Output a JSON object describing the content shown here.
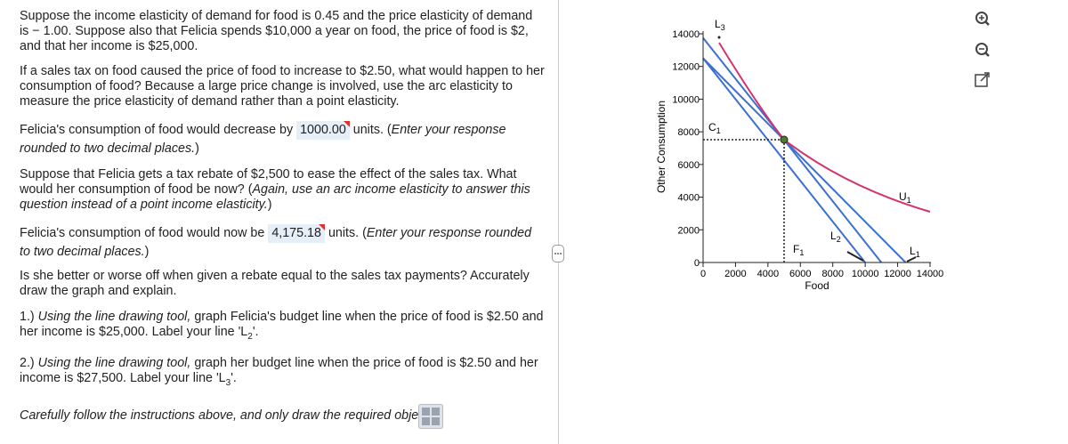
{
  "problem": {
    "q1": "Suppose the income elasticity of demand for food is 0.45 and the price elasticity of demand is − 1.00. Suppose also that Felicia spends $10,000 a year on food, the price of food is $2, and that her income is $25,000.",
    "q2": "If a sales tax on food caused the price of food to increase to $2.50, what would happen to her consumption of food? Because a large price change is involved, use the arc elasticity to measure the price elasticity of demand rather than a point elasticity.",
    "a1": {
      "before": "Felicia's consumption of food would decrease by",
      "input": "1000.00",
      "after": "units. (",
      "hint": "Enter your response rounded to two decimal places.",
      "end": ")"
    },
    "q3": {
      "text": "Suppose that Felicia gets a tax rebate of $2,500 to ease the effect of the sales tax. What would her consumption of food be now? (",
      "hint": "Again, use an arc income elasticity to answer this question instead of a point income elasticity.",
      "end": ")"
    },
    "a2": {
      "before": "Felicia's consumption of food would now be",
      "input": "4,175.18",
      "after": "units. (",
      "hint": "Enter your response rounded to two decimal places.",
      "end": ")"
    },
    "q4": "Is she better or worse off when given a rebate equal to the sales tax payments? Accurately draw the graph and explain.",
    "step1": {
      "number": "1.)",
      "italic": "Using the line drawing tool,",
      "text": "graph Felicia's budget line when the price of food is $2.50 and her income is $25,000. Label your line 'L",
      "sub": "2",
      "end": "'."
    },
    "step2": {
      "number": "2.)",
      "italic": "Using the line drawing tool,",
      "text": "graph her budget line when the price of food is $2.50 and her income is $27,500. Label your line 'L",
      "sub": "3",
      "end": "'."
    },
    "footer": "Carefully follow the instructions above, and only draw the required objects."
  },
  "graph": {
    "x_label": "Food",
    "y_label": "Other Consumption",
    "xticks": [
      0,
      2000,
      4000,
      6000,
      8000,
      10000,
      12000,
      14000
    ],
    "yticks": [
      0,
      2000,
      4000,
      6000,
      8000,
      10000,
      12000,
      14000
    ],
    "labels": {
      "C1": {
        "text": "C",
        "sub": "1"
      },
      "F1": {
        "text": "F",
        "sub": "1"
      },
      "L1": {
        "text": "L",
        "sub": "1"
      },
      "L2": {
        "text": "L",
        "sub": "2"
      },
      "L3": {
        "text": "L",
        "sub": "3"
      },
      "U1": {
        "text": "U",
        "sub": "1"
      }
    }
  }
}
